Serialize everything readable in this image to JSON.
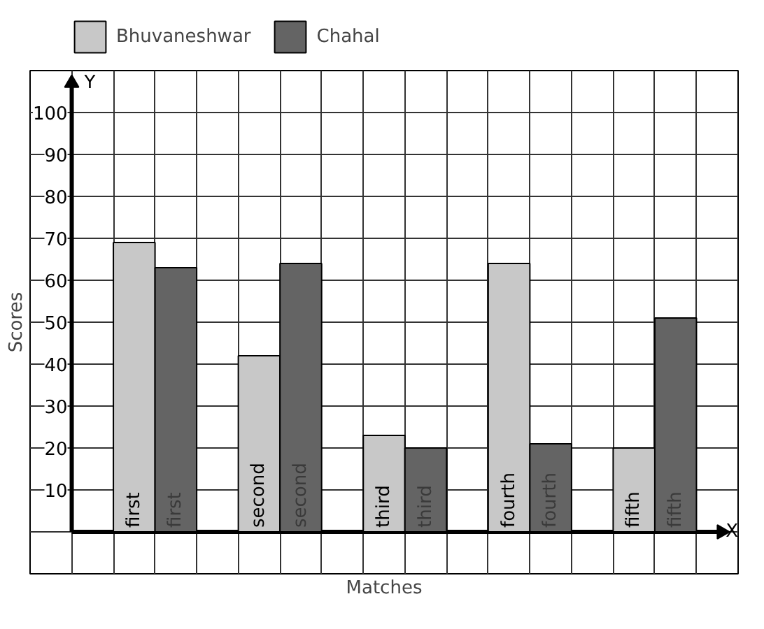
{
  "chart_data": {
    "type": "bar",
    "xlabel": "Matches",
    "ylabel": "Scores",
    "categories": [
      "first",
      "second",
      "third",
      "fourth",
      "fifth"
    ],
    "series": [
      {
        "name": "Bhuvaneshwar",
        "color": "#c8c8c8",
        "values": [
          69,
          42,
          23,
          64,
          20
        ]
      },
      {
        "name": "Chahal",
        "color": "#646464",
        "values": [
          63,
          64,
          20,
          21,
          51
        ]
      }
    ],
    "ylim": [
      -10,
      110
    ],
    "yticks": [
      10,
      20,
      30,
      40,
      50,
      60,
      70,
      80,
      90,
      100
    ],
    "grid": true,
    "legend": "top",
    "annotations": [
      "Y",
      "X"
    ]
  }
}
